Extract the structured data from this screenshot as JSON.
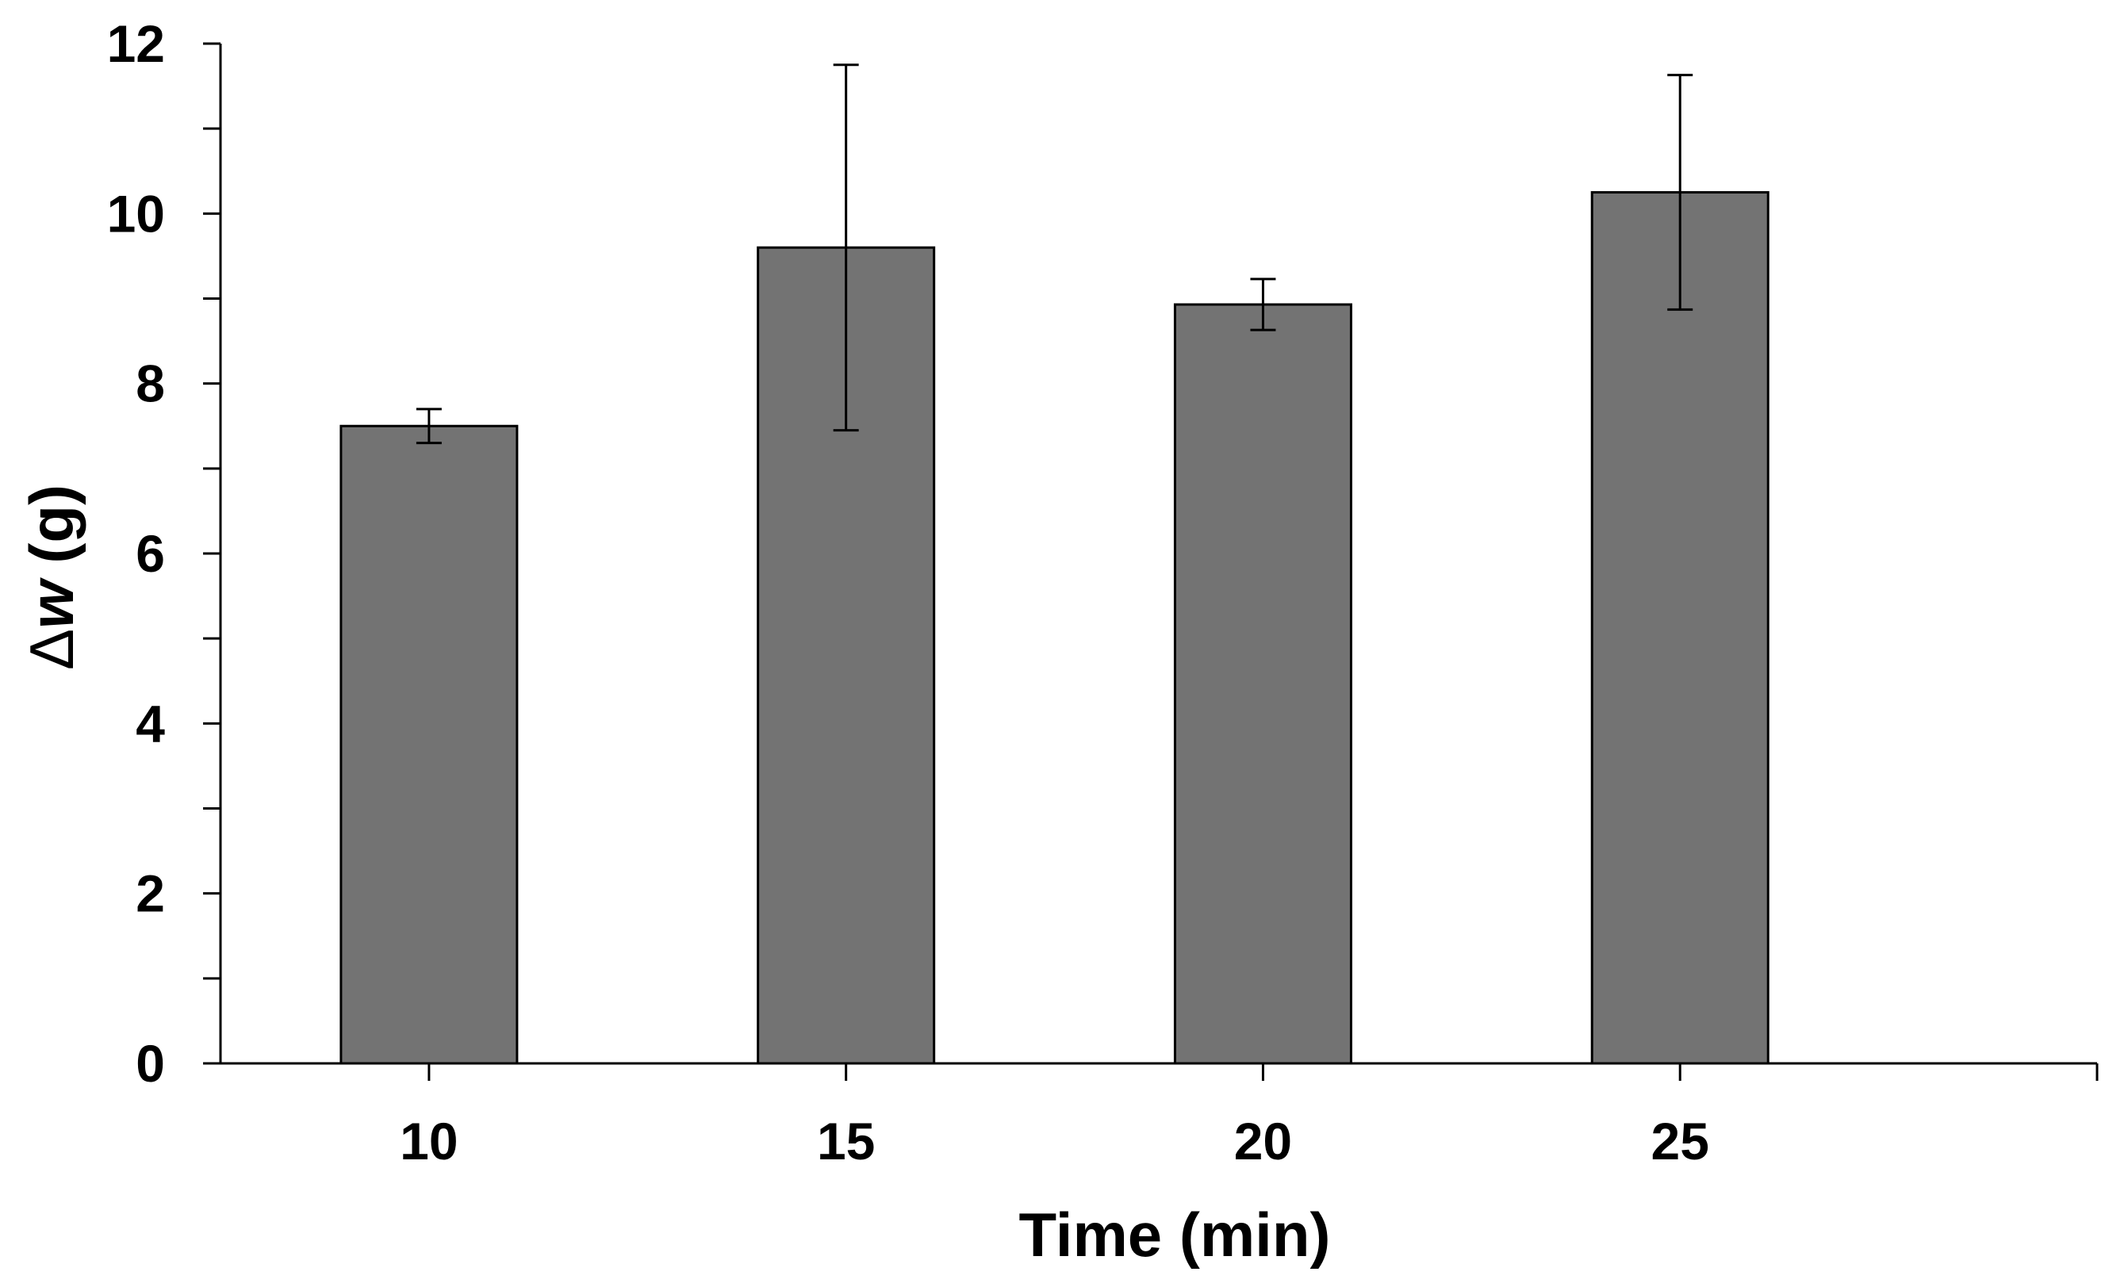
{
  "chart_data": {
    "type": "bar",
    "title": "",
    "xlabel": "Time (min)",
    "ylabel_symbol": "Δ",
    "ylabel_var": "w",
    "ylabel_unit": " (g)",
    "categories": [
      "10",
      "15",
      "20",
      "25"
    ],
    "values": [
      7.5,
      9.6,
      8.93,
      10.25
    ],
    "errors": [
      0.2,
      2.15,
      0.3,
      1.38
    ],
    "ylim": [
      0,
      12
    ],
    "yticks": [
      "0",
      "2",
      "4",
      "6",
      "8",
      "10",
      "12"
    ],
    "ytick_values": [
      0,
      2,
      4,
      6,
      8,
      10,
      12
    ],
    "minor_step": 1,
    "grid": false,
    "bar_color": "#737373",
    "edge_color": "#000000"
  }
}
